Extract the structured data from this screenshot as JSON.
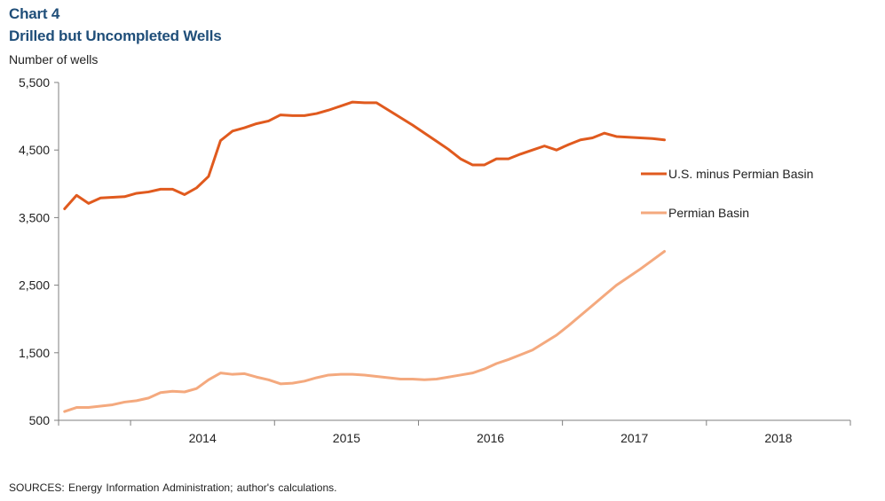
{
  "header": {
    "chart_number": "Chart 4",
    "title": "Drilled but Uncompleted Wells",
    "y_unit": "Number of wells"
  },
  "footer": {
    "source": "SOURCES: Energy Information  Administration; author's calculations."
  },
  "chart_data": {
    "type": "line",
    "title": "Drilled but Uncompleted Wells",
    "ylabel": "Number of wells",
    "xlabel": "",
    "ylim": [
      500,
      5500
    ],
    "yticks": [
      500,
      1500,
      2500,
      3500,
      4500,
      5500
    ],
    "ytick_labels": [
      "500",
      "1,500",
      "2,500",
      "3,500",
      "4,500",
      "5,500"
    ],
    "xlim": [
      "2013-07",
      "2018-12"
    ],
    "xtick_labels": [
      "2014",
      "2015",
      "2016",
      "2017",
      "2018"
    ],
    "grid": false,
    "legend_position": "right",
    "x": [
      "2013-07",
      "2013-08",
      "2013-09",
      "2013-10",
      "2013-11",
      "2013-12",
      "2014-01",
      "2014-02",
      "2014-03",
      "2014-04",
      "2014-05",
      "2014-06",
      "2014-07",
      "2014-08",
      "2014-09",
      "2014-10",
      "2014-11",
      "2014-12",
      "2015-01",
      "2015-02",
      "2015-03",
      "2015-04",
      "2015-05",
      "2015-06",
      "2015-07",
      "2015-08",
      "2015-09",
      "2015-10",
      "2015-11",
      "2015-12",
      "2016-01",
      "2016-02",
      "2016-03",
      "2016-04",
      "2016-05",
      "2016-06",
      "2016-07",
      "2016-08",
      "2016-09",
      "2016-10",
      "2016-11",
      "2016-12",
      "2017-01",
      "2017-02",
      "2017-03",
      "2017-04",
      "2017-05",
      "2017-06",
      "2017-07",
      "2017-08",
      "2017-09",
      "2017-10",
      "2017-11",
      "2017-12",
      "2018-01"
    ],
    "series": [
      {
        "name": "U.S. minus Permian Basin",
        "color": "#e05a1e",
        "values": [
          3630,
          3830,
          3710,
          3790,
          3800,
          3810,
          3860,
          3880,
          3920,
          3920,
          3840,
          3940,
          4110,
          4640,
          4780,
          4830,
          4890,
          4930,
          5020,
          5010,
          5010,
          5040,
          5090,
          5150,
          5210,
          5200,
          5200,
          5090,
          4980,
          4870,
          4750,
          4630,
          4510,
          4370,
          4280,
          4280,
          4370,
          4370,
          4440,
          4500,
          4560,
          4500,
          4580,
          4650,
          4680,
          4750,
          4700,
          4690,
          4680,
          4670,
          4650,
          null,
          null,
          null,
          null
        ]
      },
      {
        "name": "Permian Basin",
        "color": "#f4a97e",
        "values": [
          630,
          690,
          690,
          710,
          730,
          770,
          790,
          830,
          910,
          930,
          920,
          970,
          1100,
          1200,
          1180,
          1190,
          1140,
          1100,
          1040,
          1050,
          1080,
          1130,
          1170,
          1180,
          1180,
          1170,
          1150,
          1130,
          1110,
          1110,
          1100,
          1110,
          1140,
          1170,
          1200,
          1260,
          1340,
          1400,
          1470,
          1540,
          1650,
          1760,
          1900,
          2050,
          2200,
          2350,
          2500,
          2620,
          2740,
          2870,
          3000,
          null,
          null,
          null,
          null
        ]
      }
    ]
  }
}
